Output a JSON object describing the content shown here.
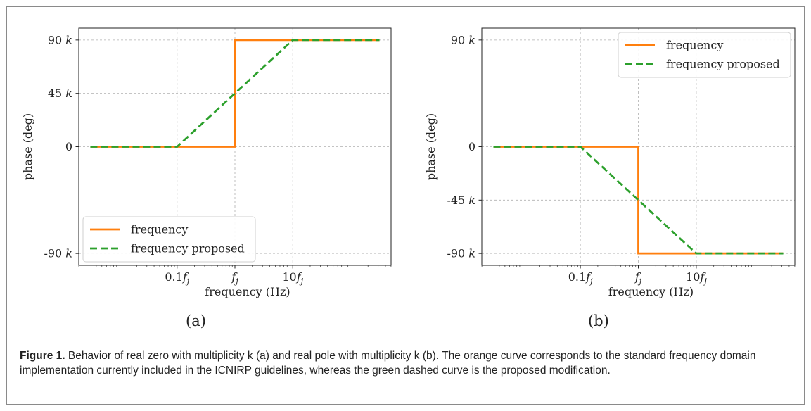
{
  "figure": {
    "caption_label": "Figure 1.",
    "caption_text": " Behavior of real zero with multiplicity k (a) and real pole with multiplicity k (b). The orange curve corresponds to the standard frequency domain implementation currently included in the ICNIRP guidelines, whereas the green dashed curve is the proposed modification."
  },
  "colors": {
    "orange": "#ff7f0e",
    "green": "#2ca02c",
    "grid": "#b0b0b0"
  },
  "chart_data": [
    {
      "type": "line",
      "panel_label": "(a)",
      "xlabel": "frequency (Hz)",
      "ylabel": "phase (deg)",
      "x_scale": "log",
      "xlim_decades": [
        -2.7,
        2.7
      ],
      "ylim": [
        -100,
        100
      ],
      "x_ticks": [
        {
          "value": -1,
          "label_pre": "0.1",
          "label_sym": "f",
          "label_sub": "j"
        },
        {
          "value": 0,
          "label_pre": "",
          "label_sym": "f",
          "label_sub": "j"
        },
        {
          "value": 1,
          "label_pre": "10",
          "label_sym": "f",
          "label_sub": "j"
        }
      ],
      "y_ticks": [
        {
          "value": 90,
          "label": "90 k"
        },
        {
          "value": 45,
          "label": "45 k"
        },
        {
          "value": 0,
          "label": "0"
        },
        {
          "value": -90,
          "label": "-90 k"
        }
      ],
      "grid": true,
      "legend": {
        "position": "lower-left"
      },
      "series": [
        {
          "name": "frequency",
          "color": "orange",
          "dash": false,
          "x": [
            -2.5,
            0,
            0,
            2.5
          ],
          "y": [
            0,
            0,
            90,
            90
          ]
        },
        {
          "name": "frequency proposed",
          "color": "green",
          "dash": true,
          "x": [
            -2.5,
            -1,
            1,
            2.5
          ],
          "y": [
            0,
            0,
            90,
            90
          ]
        }
      ]
    },
    {
      "type": "line",
      "panel_label": "(b)",
      "xlabel": "frequency (Hz)",
      "ylabel": "phase (deg)",
      "x_scale": "log",
      "xlim_decades": [
        -2.7,
        2.7
      ],
      "ylim": [
        -100,
        100
      ],
      "x_ticks": [
        {
          "value": -1,
          "label_pre": "0.1",
          "label_sym": "f",
          "label_sub": "j"
        },
        {
          "value": 0,
          "label_pre": "",
          "label_sym": "f",
          "label_sub": "j"
        },
        {
          "value": 1,
          "label_pre": "10",
          "label_sym": "f",
          "label_sub": "j"
        }
      ],
      "y_ticks": [
        {
          "value": 90,
          "label": "90 k"
        },
        {
          "value": 0,
          "label": "0"
        },
        {
          "value": -45,
          "label": "-45 k"
        },
        {
          "value": -90,
          "label": "-90 k"
        }
      ],
      "grid": true,
      "legend": {
        "position": "top-right"
      },
      "series": [
        {
          "name": "frequency",
          "color": "orange",
          "dash": false,
          "x": [
            -2.5,
            0,
            0,
            2.5
          ],
          "y": [
            0,
            0,
            -90,
            -90
          ]
        },
        {
          "name": "frequency proposed",
          "color": "green",
          "dash": true,
          "x": [
            -2.5,
            -1,
            1,
            2.5
          ],
          "y": [
            0,
            0,
            -90,
            -90
          ]
        }
      ]
    }
  ]
}
